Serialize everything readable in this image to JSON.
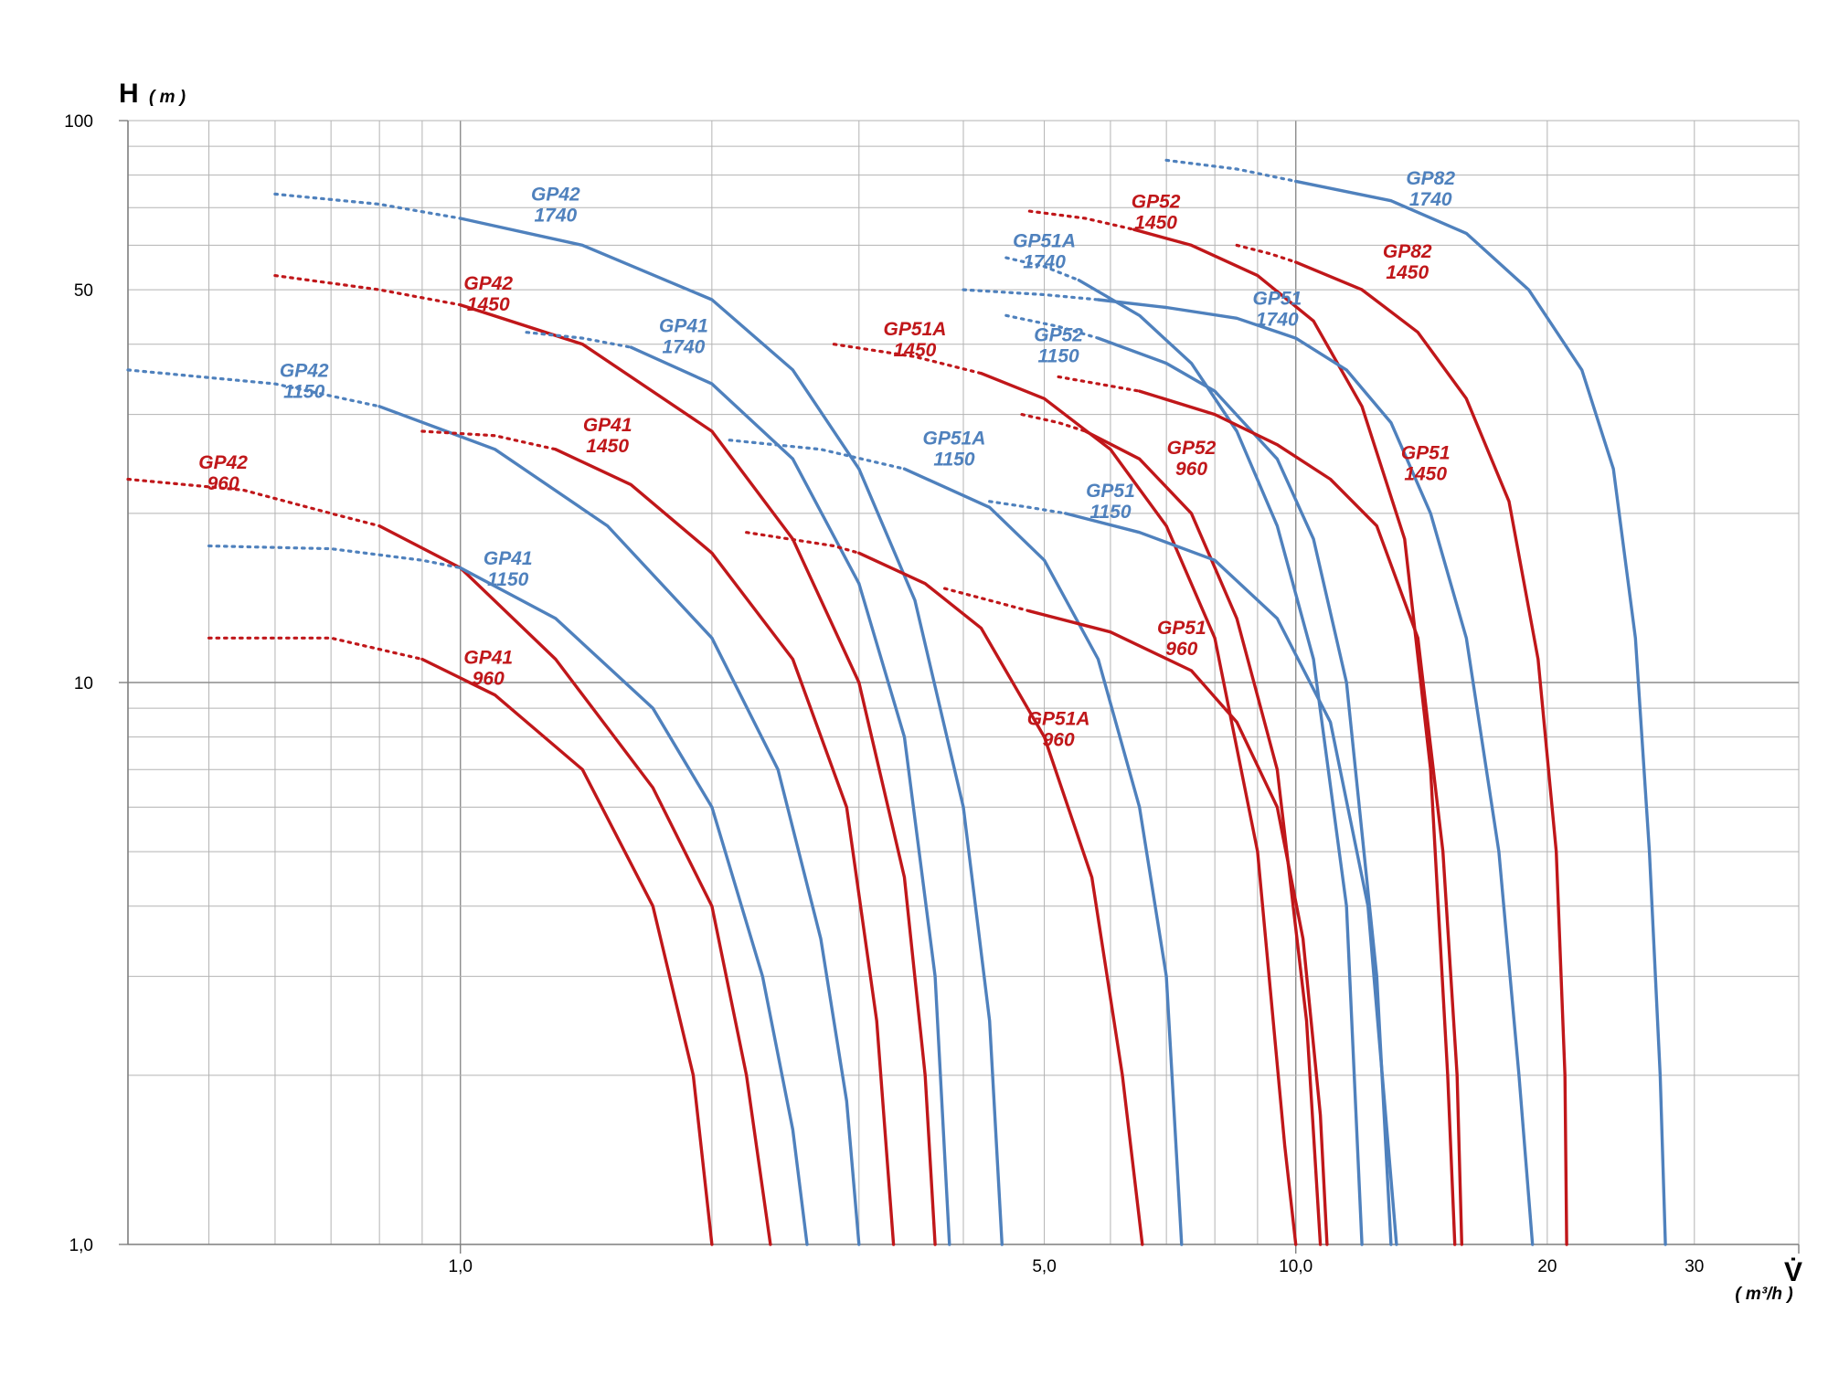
{
  "chart_data": {
    "type": "line",
    "title": "",
    "ylabel": "H",
    "ylabel_unit": "( m )",
    "xlabel": "V̇",
    "xlabel_unit": "( m³/h )",
    "x_scale": "log",
    "y_scale": "log",
    "xlim": [
      0.4,
      40
    ],
    "ylim": [
      1,
      100
    ],
    "grid": true,
    "legend": "none",
    "x_tick_labels": [
      {
        "value": 1,
        "label": "1,0"
      },
      {
        "value": 5,
        "label": "5,0"
      },
      {
        "value": 10,
        "label": "10,0"
      },
      {
        "value": 20,
        "label": "20"
      },
      {
        "value": 30,
        "label": "30"
      }
    ],
    "y_tick_labels": [
      {
        "value": 1,
        "label": "1,0"
      },
      {
        "value": 10,
        "label": "10"
      },
      {
        "value": 50,
        "label": "50"
      },
      {
        "value": 100,
        "label": "100"
      }
    ],
    "colors": {
      "1740": "#4f81bd",
      "1150": "#4f81bd",
      "1450": "#c0171a",
      "960": "#c0171a",
      "grid": "#b3b3b3"
    },
    "series": [
      {
        "name": "GP42\n1740",
        "color": "#4f81bd",
        "dotted": [
          [
            0.6,
            74
          ],
          [
            0.8,
            71
          ],
          [
            1.0,
            67
          ]
        ],
        "solid": [
          [
            1.0,
            67
          ],
          [
            1.4,
            60
          ],
          [
            2.0,
            48
          ],
          [
            2.5,
            36
          ],
          [
            3.0,
            24
          ],
          [
            3.5,
            14
          ],
          [
            4.0,
            6
          ],
          [
            4.3,
            2.5
          ],
          [
            4.45,
            1
          ]
        ],
        "label_at": [
          1.3,
          72
        ]
      },
      {
        "name": "GP42\n1450",
        "color": "#c0171a",
        "dotted": [
          [
            0.6,
            53
          ],
          [
            0.8,
            50
          ],
          [
            1.0,
            47
          ]
        ],
        "solid": [
          [
            1.0,
            47
          ],
          [
            1.4,
            40
          ],
          [
            2.0,
            28
          ],
          [
            2.5,
            18
          ],
          [
            3.0,
            10
          ],
          [
            3.4,
            4.5
          ],
          [
            3.6,
            2
          ],
          [
            3.7,
            1
          ]
        ],
        "label_at": [
          1.08,
          50
        ]
      },
      {
        "name": "GP42\n1150",
        "color": "#4f81bd",
        "dotted": [
          [
            0.4,
            36
          ],
          [
            0.6,
            34
          ],
          [
            0.8,
            31
          ]
        ],
        "solid": [
          [
            0.8,
            31
          ],
          [
            1.1,
            26
          ],
          [
            1.5,
            19
          ],
          [
            2.0,
            12
          ],
          [
            2.4,
            7
          ],
          [
            2.7,
            3.5
          ],
          [
            2.9,
            1.8
          ],
          [
            3.0,
            1
          ]
        ],
        "label_at": [
          0.65,
          35
        ]
      },
      {
        "name": "GP42\n960",
        "color": "#c0171a",
        "dotted": [
          [
            0.4,
            23
          ],
          [
            0.55,
            22
          ],
          [
            0.7,
            20
          ],
          [
            0.8,
            19
          ]
        ],
        "solid": [
          [
            0.8,
            19
          ],
          [
            1.0,
            16
          ],
          [
            1.3,
            11
          ],
          [
            1.7,
            6.5
          ],
          [
            2.0,
            4
          ],
          [
            2.2,
            2
          ],
          [
            2.35,
            1
          ]
        ],
        "label_at": [
          0.52,
          24
        ]
      },
      {
        "name": "GP41\n1740",
        "color": "#4f81bd",
        "dotted": [
          [
            1.2,
            42
          ],
          [
            1.4,
            41
          ],
          [
            1.6,
            39.5
          ]
        ],
        "solid": [
          [
            1.6,
            39.5
          ],
          [
            2.0,
            34
          ],
          [
            2.5,
            25
          ],
          [
            3.0,
            15
          ],
          [
            3.4,
            8
          ],
          [
            3.7,
            3
          ],
          [
            3.85,
            1
          ]
        ],
        "label_at": [
          1.85,
          42
        ]
      },
      {
        "name": "GP41\n1450",
        "color": "#c0171a",
        "dotted": [
          [
            0.9,
            28
          ],
          [
            1.1,
            27.5
          ],
          [
            1.3,
            26
          ]
        ],
        "solid": [
          [
            1.3,
            26
          ],
          [
            1.6,
            22.5
          ],
          [
            2.0,
            17
          ],
          [
            2.5,
            11
          ],
          [
            2.9,
            6
          ],
          [
            3.15,
            2.5
          ],
          [
            3.3,
            1
          ]
        ],
        "label_at": [
          1.5,
          28
        ]
      },
      {
        "name": "GP41\n1150",
        "color": "#4f81bd",
        "dotted": [
          [
            0.5,
            17.5
          ],
          [
            0.7,
            17.3
          ],
          [
            0.9,
            16.5
          ],
          [
            1.0,
            16
          ]
        ],
        "solid": [
          [
            1.0,
            16
          ],
          [
            1.3,
            13
          ],
          [
            1.7,
            9
          ],
          [
            2.0,
            6
          ],
          [
            2.3,
            3
          ],
          [
            2.5,
            1.6
          ],
          [
            2.6,
            1
          ]
        ],
        "label_at": [
          1.14,
          16.2
        ]
      },
      {
        "name": "GP41\n960",
        "color": "#c0171a",
        "dotted": [
          [
            0.5,
            12
          ],
          [
            0.7,
            12
          ],
          [
            0.9,
            11
          ]
        ],
        "solid": [
          [
            0.9,
            11
          ],
          [
            1.1,
            9.5
          ],
          [
            1.4,
            7
          ],
          [
            1.7,
            4
          ],
          [
            1.9,
            2
          ],
          [
            2.0,
            1
          ]
        ],
        "label_at": [
          1.08,
          10.8
        ]
      },
      {
        "name": "GP51A\n1740",
        "color": "#4f81bd",
        "dotted": [
          [
            4.5,
            57
          ],
          [
            5.0,
            55
          ],
          [
            5.5,
            52
          ]
        ],
        "solid": [
          [
            5.5,
            52
          ],
          [
            6.5,
            45
          ],
          [
            7.5,
            37
          ],
          [
            8.5,
            28
          ],
          [
            9.5,
            19
          ],
          [
            10.5,
            11
          ],
          [
            11.5,
            4
          ],
          [
            12.0,
            1
          ]
        ],
        "label_at": [
          5.0,
          59.5
        ]
      },
      {
        "name": "GP51A\n1450",
        "color": "#c0171a",
        "dotted": [
          [
            2.8,
            40
          ],
          [
            3.5,
            38
          ],
          [
            4.2,
            35.5
          ]
        ],
        "solid": [
          [
            4.2,
            35.5
          ],
          [
            5.0,
            32
          ],
          [
            6.0,
            26
          ],
          [
            7.0,
            19
          ],
          [
            8.0,
            12
          ],
          [
            9.0,
            5
          ],
          [
            9.7,
            1.5
          ],
          [
            10.0,
            1
          ]
        ],
        "label_at": [
          3.5,
          41.5
        ]
      },
      {
        "name": "GP51A\n1150",
        "color": "#4f81bd",
        "dotted": [
          [
            2.1,
            27
          ],
          [
            2.7,
            26
          ],
          [
            3.4,
            24
          ]
        ],
        "solid": [
          [
            3.4,
            24
          ],
          [
            4.3,
            20.5
          ],
          [
            5.0,
            16.5
          ],
          [
            5.8,
            11
          ],
          [
            6.5,
            6
          ],
          [
            7.0,
            3
          ],
          [
            7.3,
            1
          ]
        ],
        "label_at": [
          3.9,
          26.5
        ]
      },
      {
        "name": "GP51A\n960",
        "color": "#c0171a",
        "dotted": [
          [
            2.2,
            18.5
          ],
          [
            2.8,
            17.5
          ],
          [
            3.0,
            17
          ]
        ],
        "solid": [
          [
            3.0,
            17
          ],
          [
            3.6,
            15
          ],
          [
            4.2,
            12.5
          ],
          [
            5.0,
            8
          ],
          [
            5.7,
            4.5
          ],
          [
            6.2,
            2
          ],
          [
            6.55,
            1
          ]
        ],
        "label_at": [
          5.2,
          8.4
        ]
      },
      {
        "name": "GP52\n1450",
        "color": "#c0171a",
        "dotted": [
          [
            4.8,
            69
          ],
          [
            5.6,
            67
          ],
          [
            6.4,
            64
          ]
        ],
        "solid": [
          [
            6.4,
            64
          ],
          [
            7.5,
            60
          ],
          [
            9.0,
            53
          ],
          [
            10.5,
            44
          ],
          [
            12.0,
            31
          ],
          [
            13.5,
            18
          ],
          [
            14.5,
            7
          ],
          [
            15.2,
            2
          ],
          [
            15.5,
            1
          ]
        ],
        "label_at": [
          6.8,
          70
        ]
      },
      {
        "name": "GP52\n1150",
        "color": "#4f81bd",
        "dotted": [
          [
            4.5,
            45
          ],
          [
            5.2,
            43
          ],
          [
            5.8,
            41
          ]
        ],
        "solid": [
          [
            5.8,
            41
          ],
          [
            7.0,
            37
          ],
          [
            8.0,
            33
          ],
          [
            9.5,
            25
          ],
          [
            10.5,
            18
          ],
          [
            11.5,
            10
          ],
          [
            12.5,
            3
          ],
          [
            13.0,
            1
          ]
        ],
        "label_at": [
          5.2,
          40.5
        ]
      },
      {
        "name": "GP52\n960",
        "color": "#c0171a",
        "dotted": [
          [
            4.7,
            30
          ],
          [
            5.2,
            29
          ],
          [
            5.6,
            28
          ]
        ],
        "solid": [
          [
            5.6,
            28
          ],
          [
            6.5,
            25
          ],
          [
            7.5,
            20
          ],
          [
            8.5,
            13
          ],
          [
            9.5,
            7
          ],
          [
            10.3,
            2.5
          ],
          [
            10.7,
            1
          ]
        ],
        "label_at": [
          7.5,
          25.5
        ]
      },
      {
        "name": "GP51\n1740",
        "color": "#4f81bd",
        "dotted": [
          [
            4.0,
            50
          ],
          [
            5.0,
            49
          ],
          [
            5.8,
            48
          ]
        ],
        "solid": [
          [
            5.8,
            48
          ],
          [
            7.0,
            46.5
          ],
          [
            8.5,
            44.5
          ],
          [
            10.0,
            41
          ],
          [
            11.5,
            36
          ],
          [
            13.0,
            29
          ],
          [
            14.5,
            20
          ],
          [
            16.0,
            12
          ],
          [
            17.5,
            5
          ],
          [
            18.5,
            2
          ],
          [
            19.2,
            1
          ]
        ],
        "label_at": [
          9.5,
          47
        ]
      },
      {
        "name": "GP51\n1450",
        "color": "#c0171a",
        "dotted": [
          [
            5.2,
            35
          ],
          [
            5.8,
            34
          ],
          [
            6.5,
            33
          ]
        ],
        "solid": [
          [
            6.5,
            33
          ],
          [
            8.0,
            30
          ],
          [
            9.5,
            26.5
          ],
          [
            11.0,
            23
          ],
          [
            12.5,
            19
          ],
          [
            14.0,
            12
          ],
          [
            15.0,
            5
          ],
          [
            15.6,
            2
          ],
          [
            15.8,
            1
          ]
        ],
        "label_at": [
          14.3,
          25
        ]
      },
      {
        "name": "GP51\n1150",
        "color": "#4f81bd",
        "dotted": [
          [
            4.3,
            21
          ],
          [
            4.8,
            20.5
          ],
          [
            5.3,
            20
          ]
        ],
        "solid": [
          [
            5.3,
            20
          ],
          [
            6.5,
            18.5
          ],
          [
            8.0,
            16.5
          ],
          [
            9.5,
            13
          ],
          [
            11.0,
            8.5
          ],
          [
            12.2,
            4
          ],
          [
            12.9,
            1.5
          ],
          [
            13.2,
            1
          ]
        ],
        "label_at": [
          6.0,
          21.4
        ]
      },
      {
        "name": "GP51\n960",
        "color": "#c0171a",
        "dotted": [
          [
            3.8,
            14.7
          ],
          [
            4.3,
            14
          ],
          [
            4.8,
            13.4
          ]
        ],
        "solid": [
          [
            4.8,
            13.4
          ],
          [
            6.0,
            12.3
          ],
          [
            7.5,
            10.5
          ],
          [
            8.5,
            8.5
          ],
          [
            9.5,
            6
          ],
          [
            10.2,
            3.5
          ],
          [
            10.7,
            1.7
          ],
          [
            10.9,
            1
          ]
        ],
        "label_at": [
          7.3,
          12.2
        ]
      },
      {
        "name": "GP82\n1740",
        "color": "#4f81bd",
        "dotted": [
          [
            7.0,
            85
          ],
          [
            8.5,
            82
          ],
          [
            10.0,
            78
          ]
        ],
        "solid": [
          [
            10.0,
            78
          ],
          [
            13.0,
            72
          ],
          [
            16.0,
            63
          ],
          [
            19.0,
            50
          ],
          [
            22.0,
            36
          ],
          [
            24.0,
            24
          ],
          [
            25.5,
            12
          ],
          [
            26.5,
            5
          ],
          [
            27.3,
            2
          ],
          [
            27.7,
            1
          ]
        ],
        "label_at": [
          14.5,
          77
        ]
      },
      {
        "name": "GP82\n1450",
        "color": "#c0171a",
        "dotted": [
          [
            8.5,
            60
          ],
          [
            9.3,
            58
          ],
          [
            10.0,
            56
          ]
        ],
        "solid": [
          [
            10.0,
            56
          ],
          [
            12.0,
            50
          ],
          [
            14.0,
            42
          ],
          [
            16.0,
            32
          ],
          [
            18.0,
            21
          ],
          [
            19.5,
            11
          ],
          [
            20.5,
            5
          ],
          [
            21.0,
            2
          ],
          [
            21.1,
            1
          ]
        ],
        "label_at": [
          13.6,
          57
        ]
      }
    ]
  }
}
